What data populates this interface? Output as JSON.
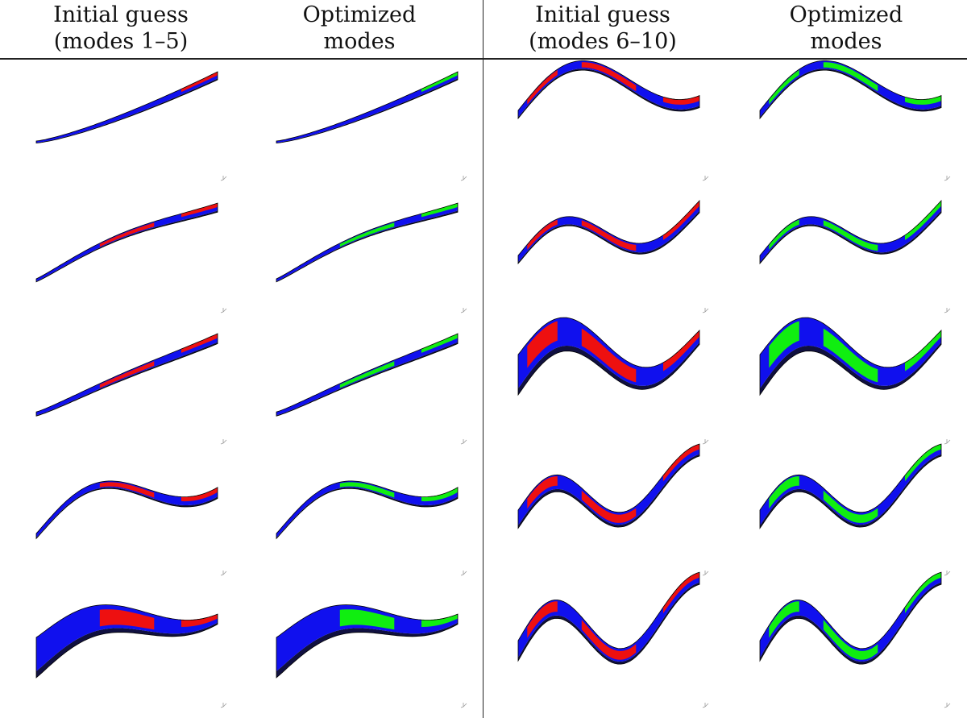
{
  "headers": [
    {
      "line1": "Initial guess",
      "line2": "(modes 1–5)"
    },
    {
      "line1": "Optimized",
      "line2": "modes"
    },
    {
      "line1": "Initial guess",
      "line2": "(modes 6–10)"
    },
    {
      "line1": "Optimized",
      "line2": "modes"
    }
  ],
  "colors": {
    "structure": "#1010ee",
    "initial_guess": "#ee1010",
    "optimized": "#10ee10",
    "outline": "#000000",
    "rule": "#222222"
  },
  "mode_sets": [
    {
      "modes": [
        1,
        2,
        3,
        4,
        5
      ]
    },
    {
      "modes": [
        6,
        7,
        8,
        9,
        10
      ]
    }
  ]
}
